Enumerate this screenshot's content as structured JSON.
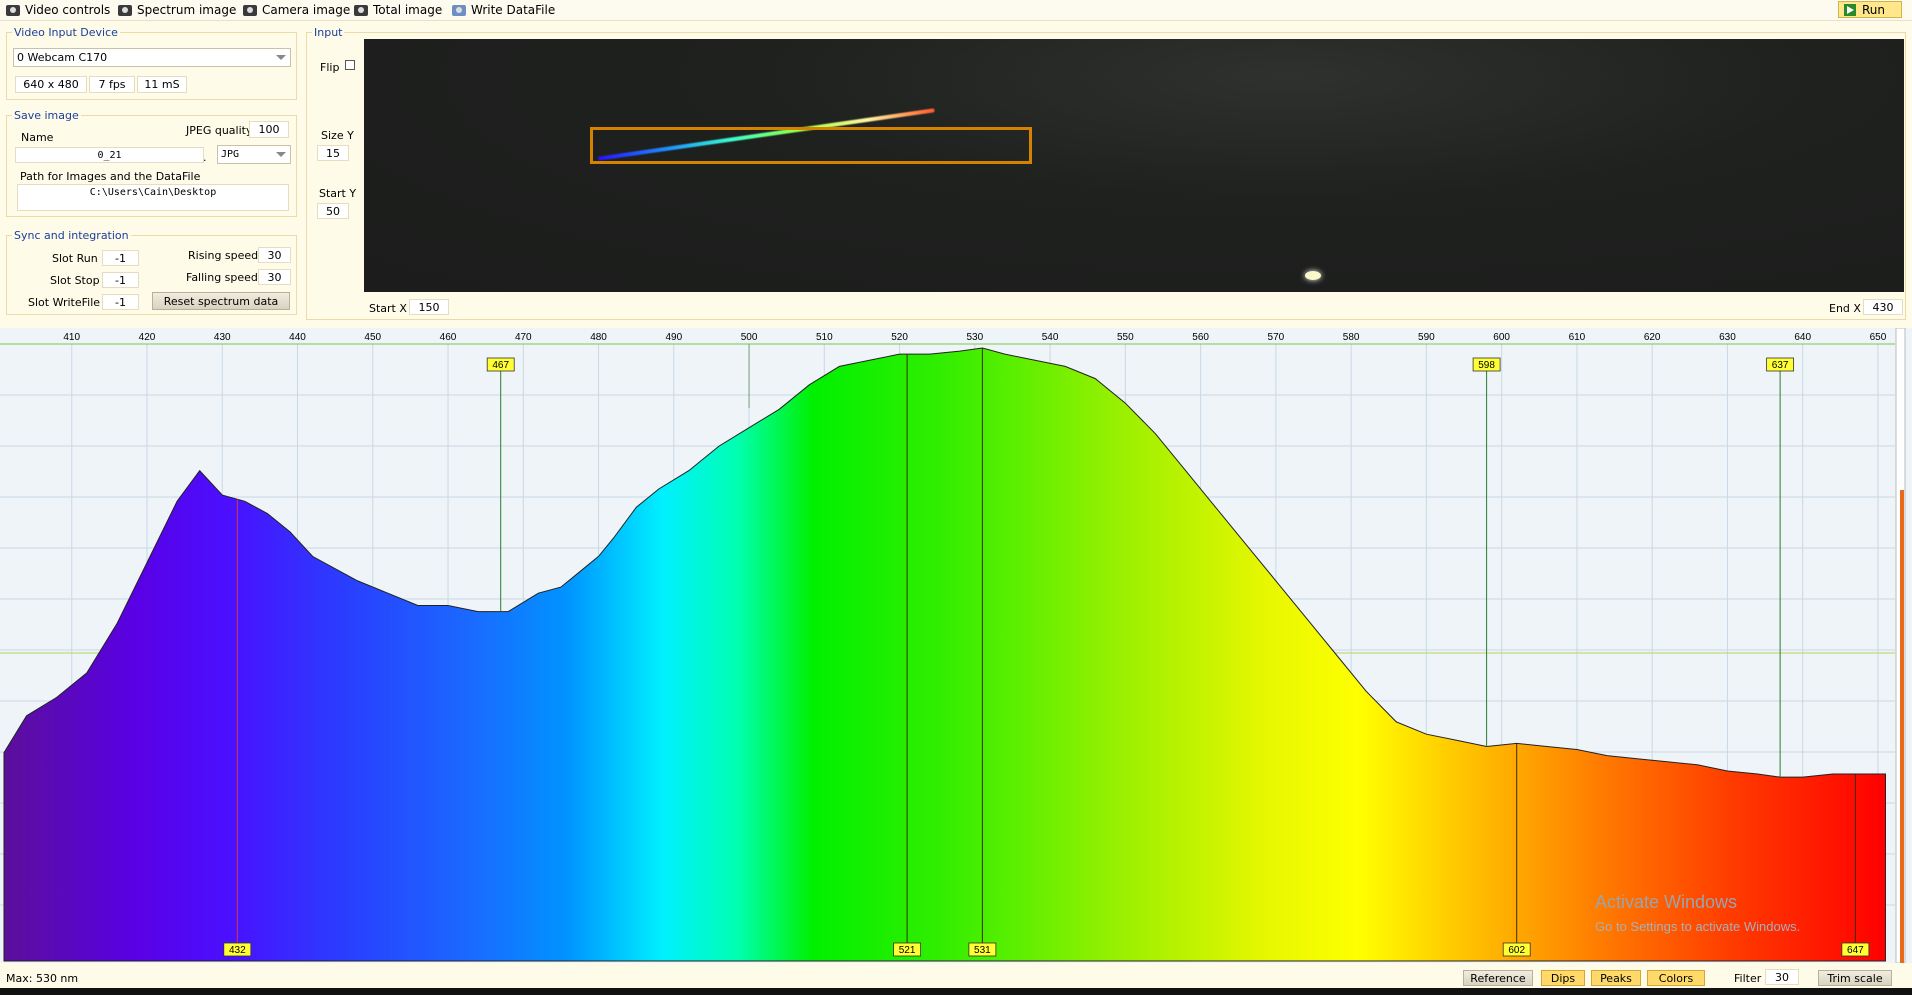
{
  "toolbar": {
    "video_controls": "Video controls",
    "spectrum_image": "Spectrum image",
    "camera_image": "Camera image",
    "total_image": "Total image",
    "write_datafile": "Write DataFile",
    "run": "Run"
  },
  "video_input": {
    "title": "Video Input Device",
    "device": "0 Webcam C170",
    "resolution": "640 x 480",
    "fps": "7 fps",
    "exposure": "11 mS"
  },
  "save_image": {
    "title": "Save image",
    "jpeg_quality_label": "JPEG quality",
    "jpeg_quality": "100",
    "name_label": "Name",
    "name_value": "0_21",
    "dot": ".",
    "format": "JPG",
    "path_label": "Path for Images and the DataFile",
    "path_value": "C:\\Users\\Cain\\Desktop"
  },
  "sync": {
    "title": "Sync and integration",
    "slot_run_label": "Slot Run",
    "slot_run": "-1",
    "slot_stop_label": "Slot Stop",
    "slot_stop": "-1",
    "slot_writefile_label": "Slot WriteFile",
    "slot_writefile": "-1",
    "rising_label": "Rising speed",
    "rising": "30",
    "falling_label": "Falling speed",
    "falling": "30",
    "reset_button": "Reset spectrum data"
  },
  "input": {
    "title": "Input",
    "flip_label": "Flip",
    "size_y_label": "Size Y",
    "size_y": "15",
    "start_y_label": "Start Y",
    "start_y": "50",
    "start_x_label": "Start X",
    "start_x": "150",
    "end_x_label": "End X",
    "end_x": "430"
  },
  "chart_data": {
    "type": "area",
    "x_unit": "nm",
    "xlim": [
      401,
      652
    ],
    "ylim": [
      0,
      1
    ],
    "grid": true,
    "tick_labels": [
      "410",
      "420",
      "430",
      "440",
      "450",
      "460",
      "470",
      "480",
      "490",
      "500",
      "510",
      "520",
      "530",
      "540",
      "550",
      "560",
      "570",
      "580",
      "590",
      "600",
      "610",
      "620",
      "630",
      "640",
      "650"
    ],
    "x": [
      401,
      404,
      408,
      412,
      416,
      420,
      424,
      427,
      430,
      433,
      436,
      439,
      442,
      445,
      448,
      452,
      456,
      460,
      464,
      468,
      472,
      475,
      478,
      480,
      482,
      485,
      488,
      492,
      496,
      500,
      504,
      508,
      512,
      516,
      520,
      524,
      528,
      531,
      534,
      538,
      542,
      546,
      550,
      554,
      558,
      562,
      566,
      570,
      574,
      578,
      582,
      586,
      590,
      594,
      598,
      602,
      606,
      610,
      614,
      618,
      622,
      626,
      630,
      634,
      637,
      640,
      644,
      648,
      651
    ],
    "y": [
      0.34,
      0.4,
      0.43,
      0.47,
      0.55,
      0.65,
      0.75,
      0.8,
      0.76,
      0.75,
      0.73,
      0.7,
      0.66,
      0.64,
      0.62,
      0.6,
      0.58,
      0.58,
      0.57,
      0.57,
      0.6,
      0.61,
      0.64,
      0.66,
      0.69,
      0.74,
      0.77,
      0.8,
      0.84,
      0.87,
      0.9,
      0.94,
      0.97,
      0.98,
      0.99,
      0.99,
      0.995,
      1.0,
      0.99,
      0.98,
      0.97,
      0.95,
      0.91,
      0.86,
      0.8,
      0.74,
      0.68,
      0.62,
      0.56,
      0.5,
      0.44,
      0.39,
      0.37,
      0.36,
      0.35,
      0.355,
      0.35,
      0.345,
      0.335,
      0.33,
      0.325,
      0.32,
      0.31,
      0.305,
      0.3,
      0.3,
      0.305,
      0.305,
      0.305
    ],
    "dips": [
      {
        "label": "467",
        "x": 467
      },
      {
        "label": "598",
        "x": 598
      },
      {
        "label": "637",
        "x": 637
      }
    ],
    "peaks": [
      {
        "label": "432",
        "x": 432
      },
      {
        "label": "521",
        "x": 521
      },
      {
        "label": "531",
        "x": 531
      },
      {
        "label": "602",
        "x": 602
      },
      {
        "label": "647",
        "x": 647
      }
    ],
    "max_line_x": 500
  },
  "status": {
    "max_text": "Max: 530 nm",
    "reference": "Reference",
    "dips": "Dips",
    "peaks": "Peaks",
    "colors": "Colors",
    "filter_label": "Filter",
    "filter": "30",
    "trim_scale": "Trim scale"
  },
  "watermark": {
    "line1": "Activate Windows",
    "line2": "Go to Settings to activate Windows."
  },
  "colors": {
    "background": "#fffbe9",
    "group_title": "#1a3f9c",
    "marker_bg": "#ffff33",
    "grid": "#c8d9e6",
    "roi": "#d58200"
  }
}
